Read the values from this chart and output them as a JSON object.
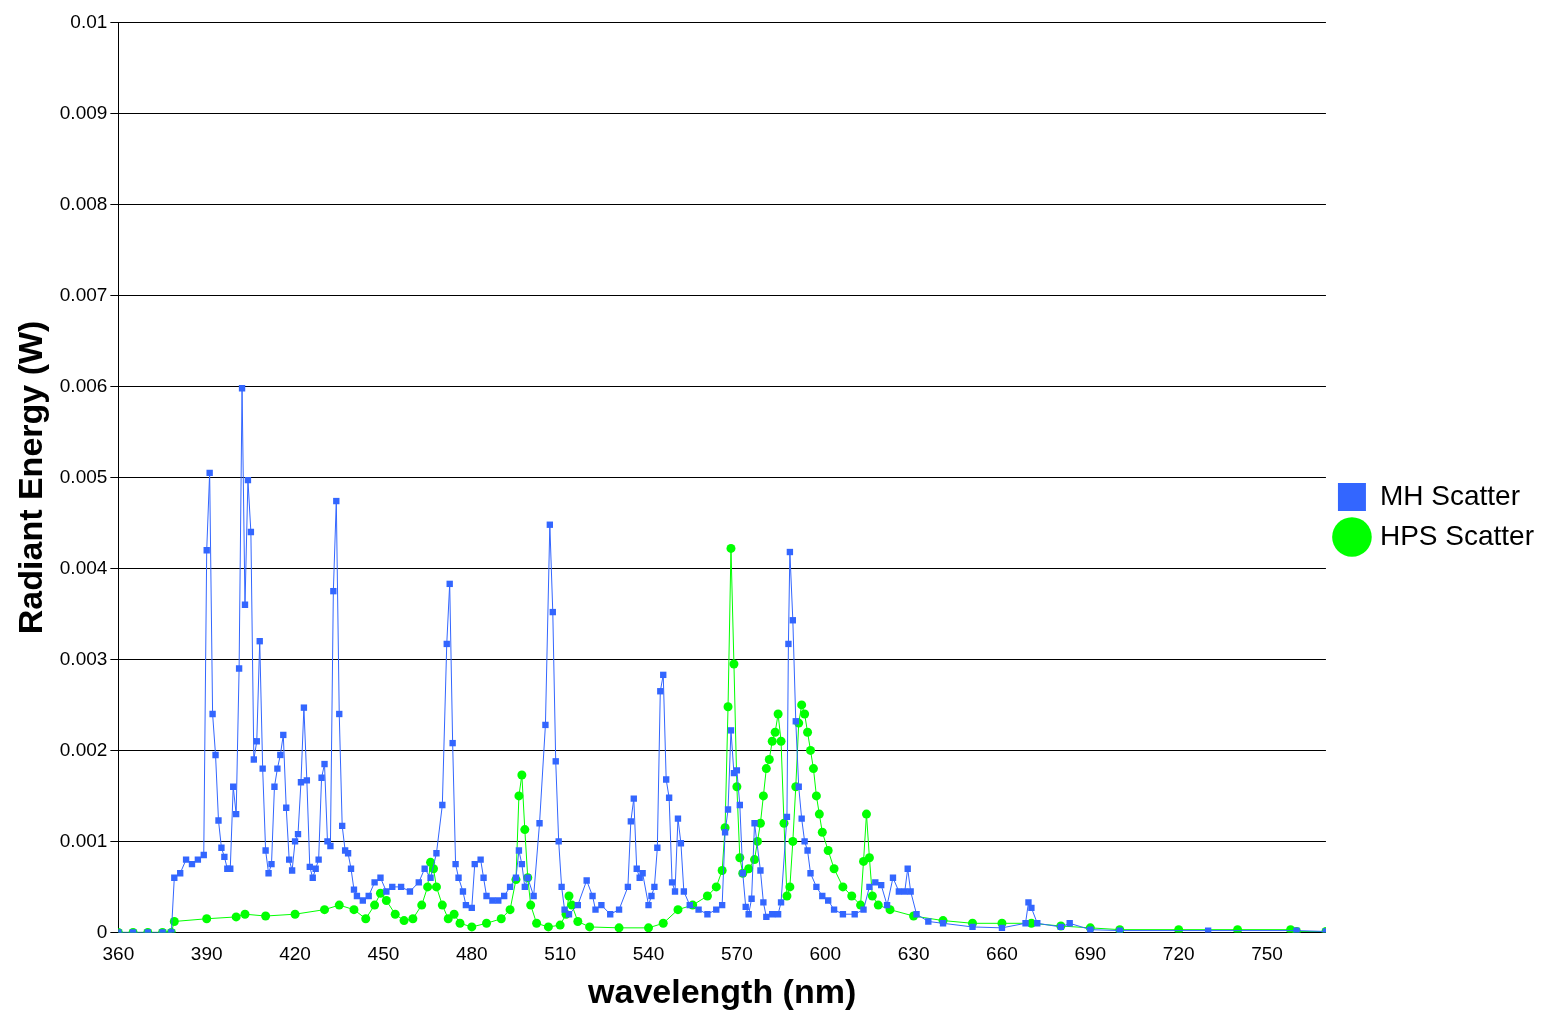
{
  "chart_data": {
    "type": "line",
    "xlabel": "wavelength (nm)",
    "ylabel": "Radiant Energy (W)",
    "xlim": [
      360,
      770
    ],
    "xticks": [
      360,
      390,
      420,
      450,
      480,
      510,
      540,
      570,
      600,
      630,
      660,
      690,
      720,
      750
    ],
    "ylim": [
      0,
      0.01
    ],
    "yticks": [
      0,
      0.001,
      0.002,
      0.003,
      0.004,
      0.005,
      0.006,
      0.007,
      0.008,
      0.009,
      0.01
    ],
    "grid": "y",
    "legend": "right",
    "series": [
      {
        "name": "MH Scatter",
        "color": "#3366ff",
        "marker": "square",
        "x": [
          360,
          365,
          370,
          375,
          378,
          379,
          381,
          383,
          385,
          387,
          389,
          390,
          391,
          392,
          393,
          394,
          395,
          396,
          397,
          398,
          399,
          400,
          401,
          402,
          403,
          404,
          405,
          406,
          407,
          408,
          409,
          410,
          411,
          412,
          413,
          414,
          415,
          416,
          417,
          418,
          419,
          420,
          421,
          422,
          423,
          424,
          425,
          426,
          427,
          428,
          429,
          430,
          431,
          432,
          433,
          434,
          435,
          436,
          437,
          438,
          439,
          440,
          441,
          443,
          445,
          447,
          449,
          451,
          453,
          456,
          459,
          462,
          464,
          466,
          468,
          470,
          471.5,
          472.5,
          473.5,
          474.5,
          475.5,
          477,
          478,
          480,
          481,
          483,
          484,
          485,
          487,
          489,
          491,
          493,
          495,
          496,
          497,
          498,
          499,
          501,
          503,
          505,
          506.5,
          507.5,
          508.5,
          509.5,
          510.5,
          511.5,
          513,
          516,
          519,
          521,
          522,
          524,
          527,
          530,
          533,
          534,
          535,
          536,
          537,
          538,
          540,
          541,
          542,
          543,
          544,
          545,
          546,
          547,
          548,
          549,
          550,
          551,
          552,
          554,
          557,
          560,
          563,
          565,
          566,
          567,
          568,
          569,
          570,
          571,
          572,
          573,
          574,
          575,
          576,
          578,
          579,
          580,
          582,
          584,
          585,
          587,
          587.5,
          588,
          589,
          590,
          591,
          592,
          593,
          594,
          595,
          597,
          599,
          601,
          603,
          606,
          610,
          613,
          615,
          617,
          619,
          621,
          623,
          625,
          627,
          628,
          629,
          631,
          635,
          640,
          650,
          660,
          668,
          669,
          670,
          672,
          680,
          683,
          690,
          700,
          730,
          760,
          770
        ],
        "values": [
          0,
          0,
          0,
          0,
          0,
          0.0006,
          0.00065,
          0.0008,
          0.00075,
          0.0008,
          0.00085,
          0.0042,
          0.00505,
          0.0024,
          0.00195,
          0.00123,
          0.00093,
          0.00083,
          0.0007,
          0.0007,
          0.0016,
          0.0013,
          0.0029,
          0.00598,
          0.0036,
          0.00497,
          0.0044,
          0.0019,
          0.0021,
          0.0032,
          0.0018,
          0.0009,
          0.00065,
          0.00075,
          0.0016,
          0.0018,
          0.00195,
          0.00217,
          0.00137,
          0.0008,
          0.00068,
          0.001,
          0.00108,
          0.00165,
          0.00247,
          0.00167,
          0.00072,
          0.0006,
          0.0007,
          0.0008,
          0.0017,
          0.00185,
          0.001,
          0.00095,
          0.00375,
          0.00474,
          0.0024,
          0.00117,
          0.0009,
          0.00087,
          0.0007,
          0.00047,
          0.0004,
          0.00035,
          0.0004,
          0.00055,
          0.0006,
          0.00045,
          0.0005,
          0.0005,
          0.00045,
          0.00055,
          0.0007,
          0.0006,
          0.00087,
          0.0014,
          0.00317,
          0.00383,
          0.00208,
          0.00075,
          0.0006,
          0.00045,
          0.0003,
          0.00027,
          0.00075,
          0.0008,
          0.0006,
          0.0004,
          0.00035,
          0.00035,
          0.0004,
          0.0005,
          0.0006,
          0.0009,
          0.00075,
          0.0005,
          0.0006,
          0.0004,
          0.0012,
          0.00228,
          0.00448,
          0.00352,
          0.00188,
          0.001,
          0.0005,
          0.00025,
          0.0002,
          0.0003,
          0.00057,
          0.0004,
          0.00025,
          0.0003,
          0.0002,
          0.00025,
          0.0005,
          0.00122,
          0.00147,
          0.0007,
          0.0006,
          0.00065,
          0.0003,
          0.0004,
          0.0005,
          0.00093,
          0.00265,
          0.00283,
          0.00168,
          0.00148,
          0.00055,
          0.00045,
          0.00125,
          0.00098,
          0.00045,
          0.0003,
          0.00025,
          0.0002,
          0.00025,
          0.0003,
          0.0011,
          0.00135,
          0.00222,
          0.00175,
          0.00178,
          0.0014,
          0.00065,
          0.00028,
          0.0002,
          0.00037,
          0.0012,
          0.00068,
          0.00033,
          0.00017,
          0.0002,
          0.0002,
          0.00033,
          0.00127,
          0.00317,
          0.00418,
          0.00343,
          0.00232,
          0.0016,
          0.00125,
          0.001,
          0.0009,
          0.00065,
          0.0005,
          0.0004,
          0.00035,
          0.00025,
          0.0002,
          0.0002,
          0.00025,
          0.0005,
          0.00055,
          0.00052,
          0.0003,
          0.0006,
          0.00045,
          0.00045,
          0.0007,
          0.00045,
          0.0002,
          0.00012,
          0.0001,
          6e-05,
          5e-05,
          0.0001,
          0.00033,
          0.00027,
          0.0001,
          6e-05,
          0.0001,
          3e-05,
          2e-05,
          2e-05,
          2e-05,
          1e-05
        ]
      },
      {
        "name": "HPS Scatter",
        "color": "#00ff00",
        "marker": "circle",
        "x": [
          360,
          365,
          370,
          375,
          378,
          379,
          390,
          400,
          403,
          410,
          420,
          430,
          435,
          440,
          444,
          447,
          449,
          451,
          454,
          457,
          460,
          463,
          465,
          466,
          467,
          468,
          470,
          472,
          474,
          476,
          480,
          485,
          490,
          493,
          495,
          496,
          497,
          498,
          499,
          500,
          502,
          506,
          510,
          512,
          513,
          514,
          516,
          520,
          530,
          540,
          545,
          550,
          555,
          560,
          563,
          565,
          566,
          567,
          568,
          569,
          570,
          571,
          572,
          574,
          576,
          577,
          578,
          579,
          580,
          581,
          582,
          583,
          584,
          585,
          586,
          587,
          588,
          589,
          590,
          591,
          592,
          593,
          594,
          595,
          596,
          597,
          598,
          599,
          601,
          603,
          606,
          609,
          612,
          613,
          614,
          615,
          616,
          618,
          622,
          630,
          640,
          650,
          660,
          670,
          680,
          690,
          700,
          720,
          740,
          758,
          760,
          770
        ],
        "values": [
          0,
          0,
          0,
          0,
          0,
          0.00012,
          0.00015,
          0.00017,
          0.0002,
          0.00018,
          0.0002,
          0.00025,
          0.0003,
          0.00025,
          0.00015,
          0.0003,
          0.00043,
          0.00035,
          0.0002,
          0.00013,
          0.00015,
          0.0003,
          0.0005,
          0.00077,
          0.0007,
          0.0005,
          0.0003,
          0.00015,
          0.0002,
          0.0001,
          6e-05,
          0.0001,
          0.00015,
          0.00025,
          0.00058,
          0.0015,
          0.00173,
          0.00113,
          0.0006,
          0.0003,
          0.0001,
          6e-05,
          8e-05,
          0.0002,
          0.0004,
          0.0003,
          0.00012,
          6e-05,
          5e-05,
          5e-05,
          0.0001,
          0.00025,
          0.0003,
          0.0004,
          0.0005,
          0.00068,
          0.00115,
          0.00248,
          0.00422,
          0.00295,
          0.0016,
          0.00082,
          0.00065,
          0.0007,
          0.0008,
          0.001,
          0.0012,
          0.0015,
          0.0018,
          0.0019,
          0.0021,
          0.0022,
          0.0024,
          0.0021,
          0.0012,
          0.0004,
          0.0005,
          0.001,
          0.0016,
          0.0023,
          0.0025,
          0.0024,
          0.0022,
          0.002,
          0.0018,
          0.0015,
          0.0013,
          0.0011,
          0.0009,
          0.0007,
          0.0005,
          0.0004,
          0.0003,
          0.00078,
          0.0013,
          0.00082,
          0.0004,
          0.0003,
          0.00025,
          0.00018,
          0.00013,
          0.0001,
          0.0001,
          0.0001,
          7e-05,
          5e-05,
          3e-05,
          3e-05,
          3e-05,
          3e-05,
          1e-05,
          1e-05
        ]
      }
    ]
  }
}
